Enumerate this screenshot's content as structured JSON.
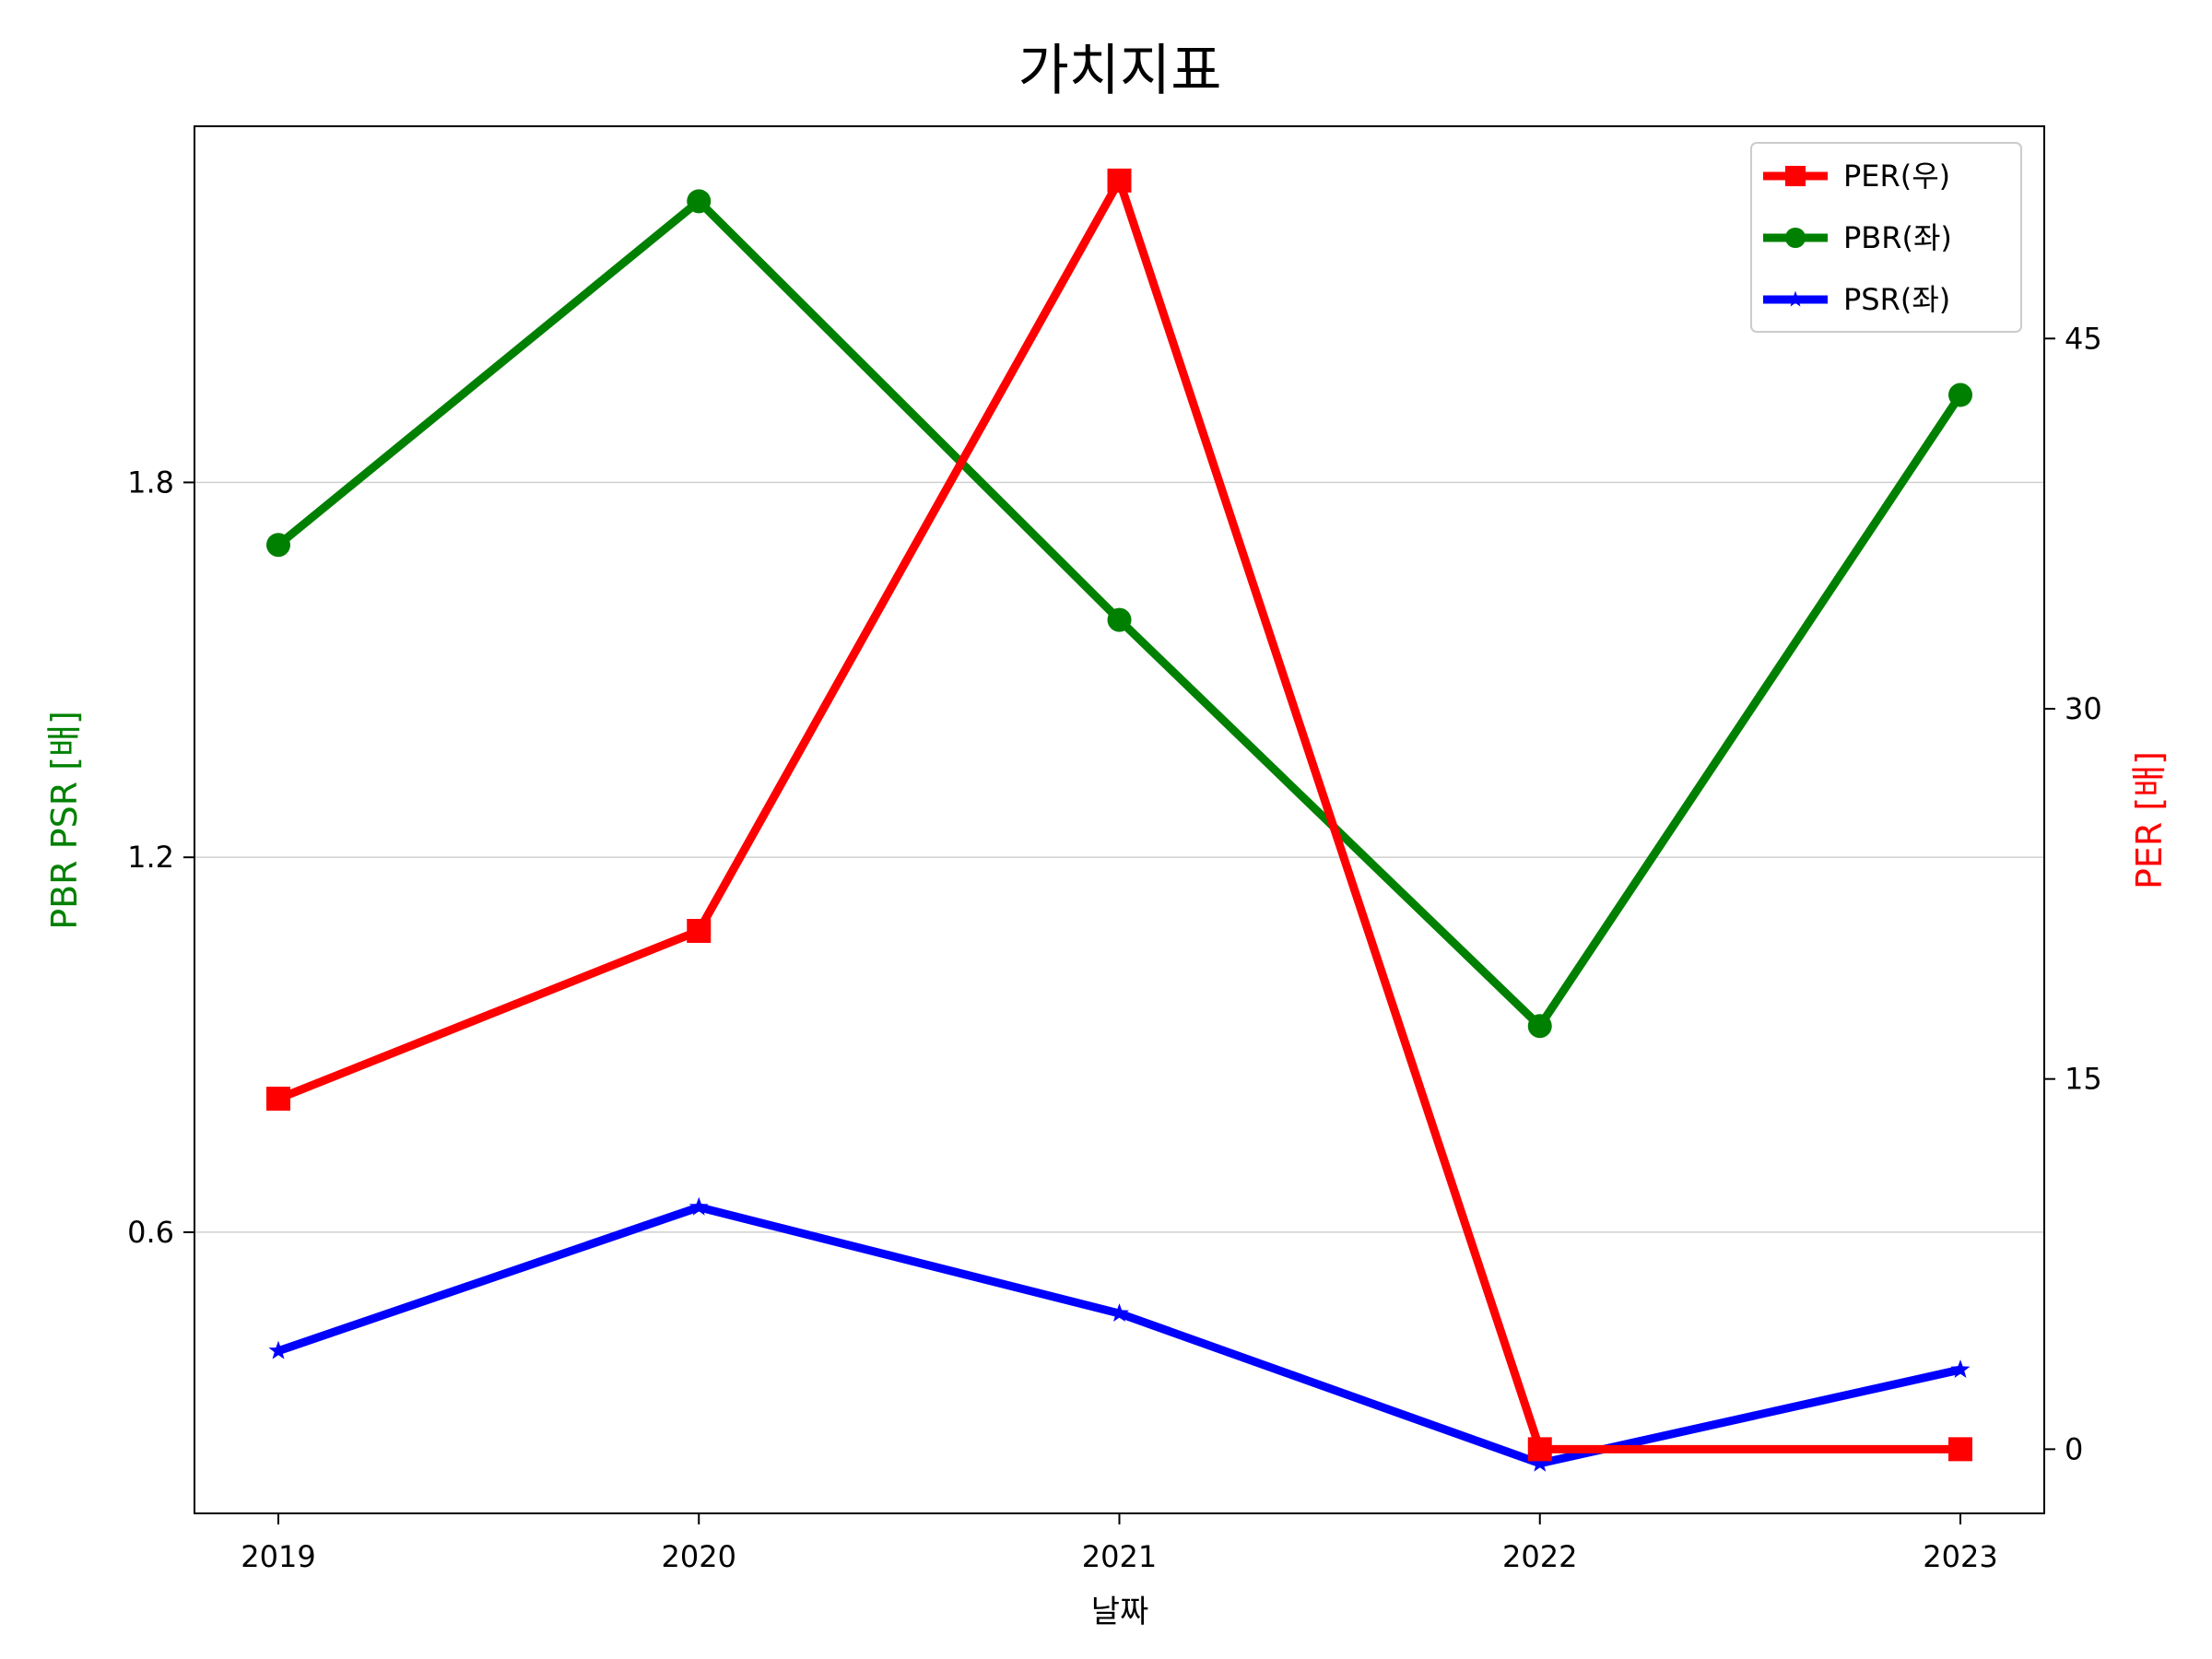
{
  "chart_data": {
    "type": "line",
    "title": "가치지표",
    "xlabel": "날짜",
    "ylabel_left": "PBR PSR [배]",
    "ylabel_right": "PER [배]",
    "categories": [
      "2019",
      "2020",
      "2021",
      "2022",
      "2023"
    ],
    "left_axis": {
      "ylim": [
        0.15,
        2.37
      ],
      "ticks": [
        "0.6",
        "1.2",
        "1.8"
      ],
      "tick_values": [
        0.6,
        1.2,
        1.8
      ]
    },
    "right_axis": {
      "ylim": [
        -2.6,
        53.6
      ],
      "ticks": [
        "0",
        "15",
        "30",
        "45"
      ],
      "tick_values": [
        0,
        15,
        30,
        45
      ]
    },
    "grid": "horizontal (left axis)",
    "legend_placement": "top-right",
    "series": [
      {
        "name": "PER(우)",
        "axis": "right",
        "marker": "square",
        "color": "#ff0000",
        "values": [
          14.2,
          21.0,
          51.4,
          0.0,
          0.0
        ]
      },
      {
        "name": "PBR(좌)",
        "axis": "left",
        "marker": "circle",
        "color": "#008000",
        "values": [
          1.7,
          2.25,
          1.58,
          0.93,
          1.94
        ]
      },
      {
        "name": "PSR(좌)",
        "axis": "left",
        "marker": "star",
        "color": "#0000ff",
        "values": [
          0.41,
          0.64,
          0.47,
          0.23,
          0.38
        ]
      }
    ],
    "axis_colors": {
      "left_label": "#008000",
      "right_label": "#ff0000"
    }
  }
}
